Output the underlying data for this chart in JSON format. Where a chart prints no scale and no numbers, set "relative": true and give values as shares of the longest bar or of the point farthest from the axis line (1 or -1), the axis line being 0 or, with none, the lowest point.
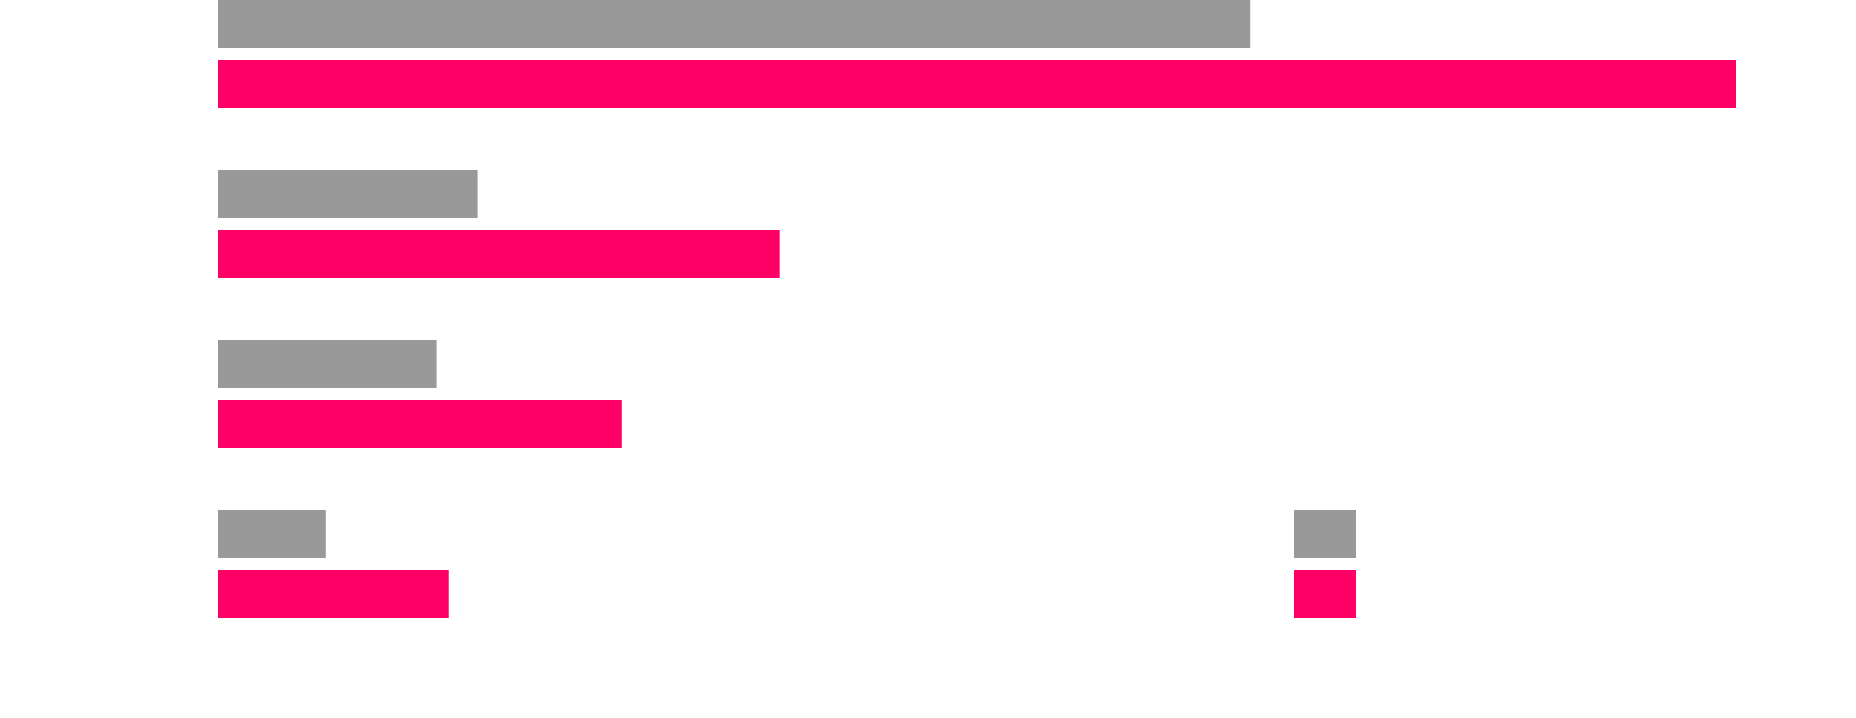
{
  "chart_data": {
    "type": "bar",
    "orientation": "horizontal",
    "relative": true,
    "categories": [
      null,
      null,
      null,
      null
    ],
    "series": [
      {
        "color": "#999999",
        "values": [
          0.68,
          0.171,
          0.144,
          0.071
        ]
      },
      {
        "color": "#ff0066",
        "values": [
          1,
          0.37,
          0.266,
          0.152
        ]
      }
    ]
  }
}
